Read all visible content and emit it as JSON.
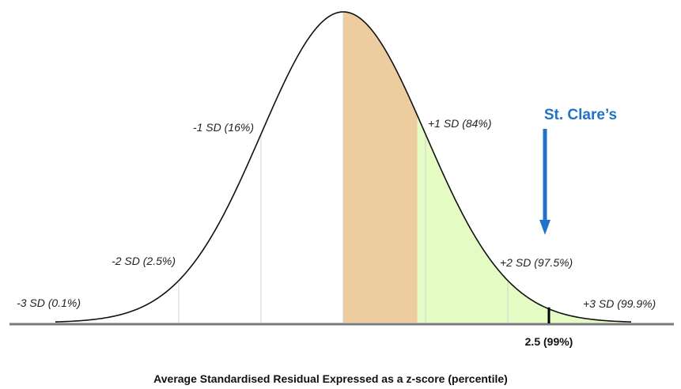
{
  "chart_data": {
    "type": "area",
    "distribution": "normal",
    "x_range": [
      -3.5,
      3.5
    ],
    "xlabel": "Average Standardised Residual Expressed as a z-score (percentile)",
    "sd_labels": [
      {
        "z": -3,
        "text": "-3 SD (0.1%)"
      },
      {
        "z": -2,
        "text": "-2 SD (2.5%)"
      },
      {
        "z": -1,
        "text": "-1 SD (16%)"
      },
      {
        "z": 1,
        "text": "+1 SD (84%)"
      },
      {
        "z": 2,
        "text": "+2 SD (97.5%)"
      },
      {
        "z": 3,
        "text": "+3 SD (99.9%)"
      }
    ],
    "shaded_regions": [
      {
        "from": 0,
        "to": 0.9,
        "color": "#EDCDA0"
      },
      {
        "from": 0.9,
        "to": 3.5,
        "color": "#E5FBC4"
      }
    ],
    "gridlines_z": [
      -2,
      -1,
      0,
      1,
      2
    ],
    "marker": {
      "z": 2.5,
      "label": "2.5 (99%)"
    },
    "annotation": {
      "text": "St. Clare’s",
      "color": "#1F73C8"
    }
  }
}
